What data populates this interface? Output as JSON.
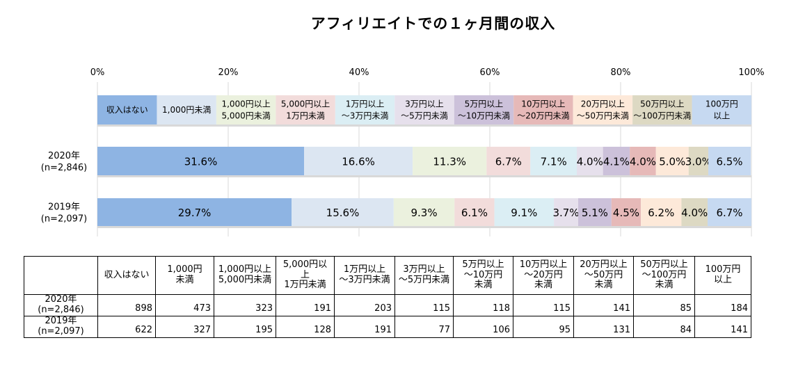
{
  "chart_data": {
    "type": "bar",
    "orientation": "horizontal",
    "stacked": true,
    "title": "アフィリエイトでの１ヶ月間の収入",
    "xlim": [
      0,
      100
    ],
    "x_ticks": [
      "0%",
      "20%",
      "40%",
      "60%",
      "80%",
      "100%"
    ],
    "legend_position": "top",
    "categories": [
      "2020年\n(n=2,846)",
      "2019年\n(n=2,097)"
    ],
    "series": [
      {
        "name": "収入はない",
        "color": "#8eb4e3",
        "values": [
          31.6,
          29.7
        ]
      },
      {
        "name": "1,000円未満",
        "color": "#dce6f2",
        "values": [
          16.6,
          15.6
        ]
      },
      {
        "name": "1,000円以上\n5,000円未満",
        "color": "#ebf1de",
        "values": [
          11.3,
          9.3
        ]
      },
      {
        "name": "5,000円以上\n1万円未満",
        "color": "#f2dcdb",
        "values": [
          6.7,
          6.1
        ]
      },
      {
        "name": "1万円以上\n～3万円未満",
        "color": "#dbeef4",
        "values": [
          7.1,
          9.1
        ]
      },
      {
        "name": "3万円以上\n～5万円未満",
        "color": "#e6e0ec",
        "values": [
          4.0,
          3.7
        ]
      },
      {
        "name": "5万円以上\n～10万円未満",
        "color": "#ccc1da",
        "values": [
          4.1,
          5.1
        ]
      },
      {
        "name": "10万円以上\n～20万円未満",
        "color": "#e6b9b8",
        "values": [
          4.0,
          4.5
        ]
      },
      {
        "name": "20万円以上\n～50万円未満",
        "color": "#fde9d9",
        "values": [
          5.0,
          6.2
        ]
      },
      {
        "name": "50万円以上\n～100万円未満",
        "color": "#ddd9c3",
        "values": [
          3.0,
          4.0
        ]
      },
      {
        "name": "100万円\n以上",
        "color": "#c6d9f1",
        "values": [
          6.5,
          6.7
        ]
      }
    ],
    "labels": [
      [
        "31.6%",
        "16.6%",
        "11.3%",
        "6.7%",
        "7.1%",
        "4.0%",
        "4.1%",
        "4.0%",
        "5.0%",
        "3.0%",
        "6.5%"
      ],
      [
        "29.7%",
        "15.6%",
        "9.3%",
        "6.1%",
        "9.1%",
        "3.7%",
        "5.1%",
        "4.5%",
        "6.2%",
        "4.0%",
        "6.7%"
      ]
    ]
  },
  "table": {
    "headers": [
      "収入はない",
      "1,000円\n未満",
      "1,000円以上\n5,000円未満",
      "5,000円以上\n1万円未満",
      "1万円以上\n～3万円未満",
      "3万円以上\n～5万円未満",
      "5万円以上\n～10万円\n未満",
      "10万円以上\n～20万円\n未満",
      "20万円以上\n～50万円\n未満",
      "50万円以上\n～100万円\n未満",
      "100万円\n以上"
    ],
    "rows": [
      {
        "label": "2020年\n(n=2,846)",
        "values": [
          "898",
          "473",
          "323",
          "191",
          "203",
          "115",
          "118",
          "115",
          "141",
          "85",
          "184"
        ]
      },
      {
        "label": "2019年\n(n=2,097)",
        "values": [
          "622",
          "327",
          "195",
          "128",
          "191",
          "77",
          "106",
          "95",
          "131",
          "84",
          "141"
        ]
      }
    ]
  }
}
